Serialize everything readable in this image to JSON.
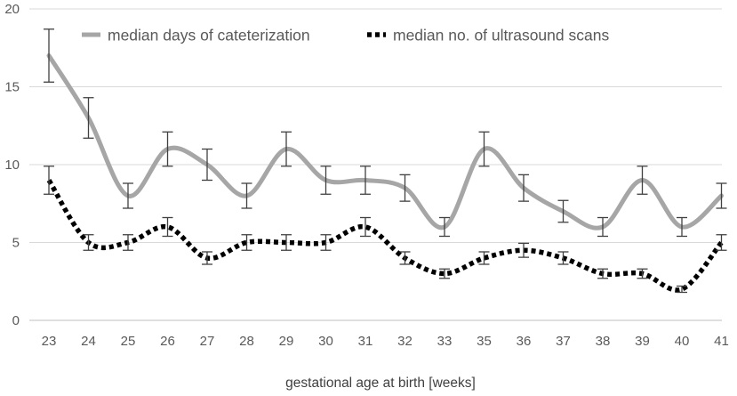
{
  "chart_data": {
    "type": "line",
    "title": "",
    "xlabel": "gestational age at birth [weeks]",
    "ylabel": "",
    "ylim": [
      0,
      20
    ],
    "yticks": [
      0,
      5,
      10,
      15,
      20
    ],
    "grid": true,
    "legend_position": "top",
    "categories": [
      "23",
      "24",
      "25",
      "26",
      "27",
      "28",
      "29",
      "30",
      "31",
      "32",
      "33",
      "35",
      "36",
      "37",
      "38",
      "39",
      "40",
      "41"
    ],
    "series": [
      {
        "name": "median days of cateterization",
        "style": "solid",
        "color": "#a6a6a6",
        "values": [
          17,
          13,
          8,
          11,
          10,
          8,
          11,
          9,
          9,
          8.5,
          6,
          11,
          8.5,
          7,
          6,
          9,
          6,
          8
        ],
        "error": [
          1.7,
          1.3,
          0.8,
          1.1,
          1.0,
          0.8,
          1.1,
          0.9,
          0.9,
          0.85,
          0.6,
          1.1,
          0.85,
          0.7,
          0.6,
          0.9,
          0.6,
          0.8
        ]
      },
      {
        "name": "median no. of ultrasound scans",
        "style": "dotted",
        "color": "#000000",
        "values": [
          9,
          5,
          5,
          6,
          4,
          5,
          5,
          5,
          6,
          4,
          3,
          4,
          4.5,
          4,
          3,
          3,
          2,
          5
        ],
        "error": [
          0.9,
          0.5,
          0.5,
          0.6,
          0.4,
          0.5,
          0.5,
          0.5,
          0.6,
          0.4,
          0.3,
          0.4,
          0.45,
          0.4,
          0.3,
          0.3,
          0.2,
          0.5
        ]
      }
    ]
  }
}
